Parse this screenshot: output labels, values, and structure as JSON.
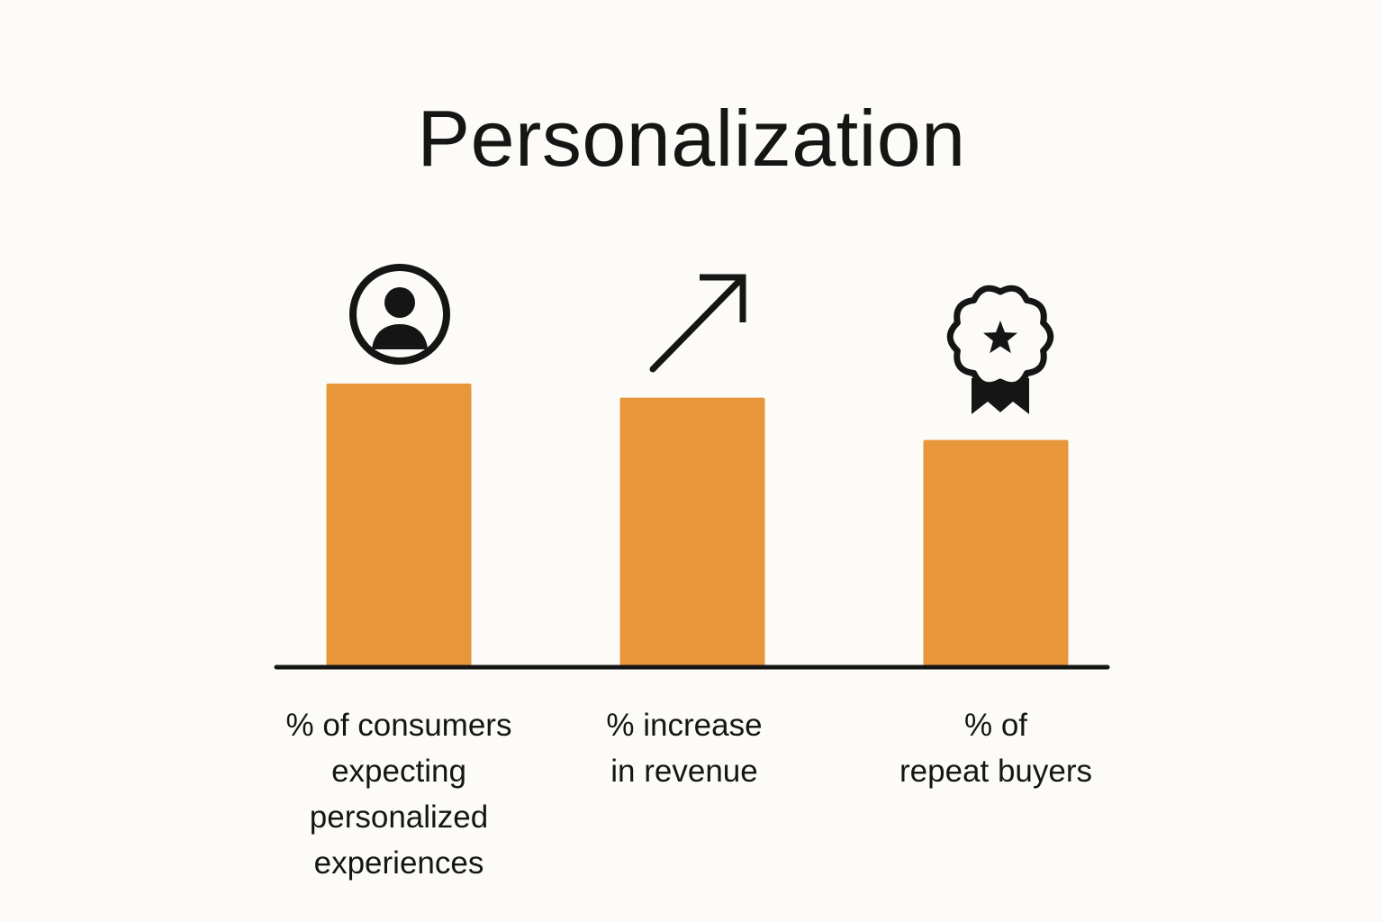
{
  "chart_data": {
    "type": "bar",
    "title": "Personalization",
    "categories": [
      "% of consumers\nexpecting\npersonalized\nexperiences",
      "% increase\nin revenue",
      "% of\nrepeat buyers"
    ],
    "values": [
      100,
      95,
      80
    ],
    "ylim": [
      0,
      100
    ],
    "xlabel": "",
    "ylabel": "",
    "grid": false,
    "legend": "none",
    "bar_color": "#e8963a",
    "axis_color": "#151515",
    "icons": [
      "user-icon",
      "trend-up-arrow-icon",
      "award-badge-icon"
    ]
  }
}
